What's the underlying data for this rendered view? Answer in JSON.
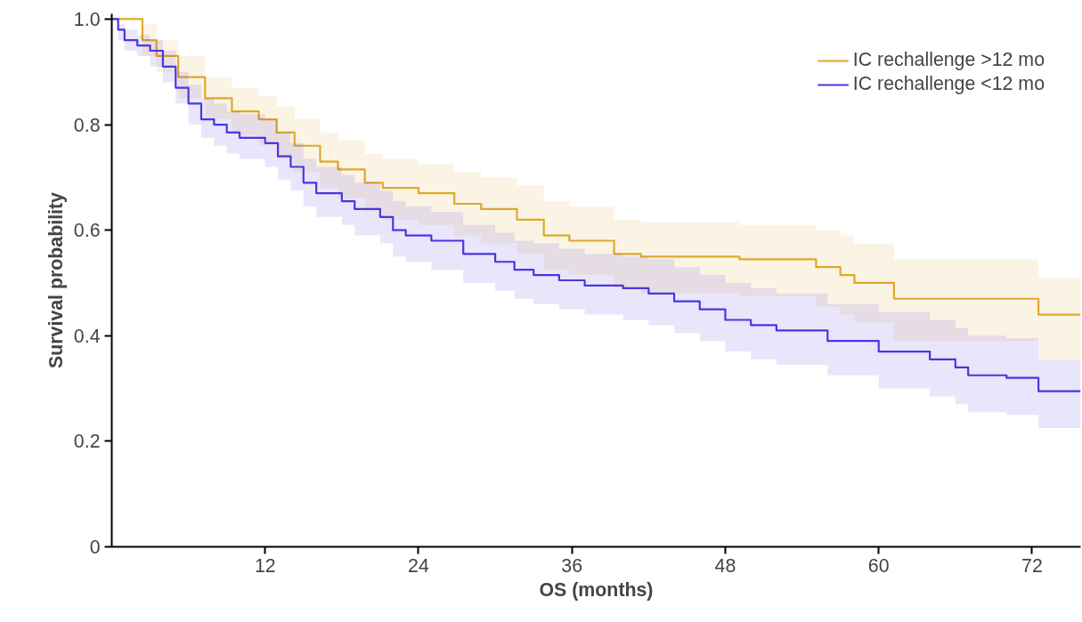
{
  "chart_data": {
    "type": "step",
    "xlabel": "OS (months)",
    "ylabel": "Survival probability",
    "xlim": [
      0,
      75.8
    ],
    "ylim": [
      0,
      1.01
    ],
    "xticks": [
      12,
      24,
      36,
      48,
      60,
      72
    ],
    "yticks": [
      0,
      0.2,
      0.4,
      0.6,
      0.8,
      {
        "value": 1.0,
        "label": "1.0"
      }
    ],
    "grid": false,
    "legend": "top right",
    "series": [
      {
        "name": "IC rechallenge >12 mo",
        "color": "#e0a828",
        "x": [
          0,
          2.4,
          3.5,
          5.2,
          7.3,
          9.4,
          11.5,
          12.9,
          14.3,
          16.3,
          17.7,
          19.8,
          21.2,
          24,
          26.8,
          28.9,
          31.7,
          33.8,
          35.8,
          39.3,
          41.4,
          49.1,
          55.1,
          57,
          58.1,
          61.2,
          72.5,
          75.8
        ],
        "values": [
          1.0,
          0.96,
          0.93,
          0.89,
          0.85,
          0.825,
          0.81,
          0.785,
          0.76,
          0.73,
          0.715,
          0.69,
          0.68,
          0.67,
          0.65,
          0.64,
          0.62,
          0.59,
          0.58,
          0.555,
          0.55,
          0.545,
          0.53,
          0.515,
          0.5,
          0.47,
          0.44,
          0.44
        ],
        "lower": [
          1.0,
          0.93,
          0.9,
          0.85,
          0.81,
          0.78,
          0.76,
          0.735,
          0.71,
          0.68,
          0.66,
          0.635,
          0.62,
          0.61,
          0.59,
          0.575,
          0.555,
          0.525,
          0.515,
          0.49,
          0.48,
          0.475,
          0.455,
          0.44,
          0.425,
          0.39,
          0.355,
          0.355
        ],
        "upper": [
          1.0,
          0.99,
          0.96,
          0.93,
          0.89,
          0.87,
          0.855,
          0.835,
          0.81,
          0.785,
          0.77,
          0.745,
          0.735,
          0.725,
          0.71,
          0.7,
          0.685,
          0.655,
          0.645,
          0.62,
          0.615,
          0.61,
          0.6,
          0.59,
          0.575,
          0.545,
          0.51,
          0.51
        ]
      },
      {
        "name": "IC rechallenge <12 mo",
        "color": "#4b35e0",
        "x": [
          0,
          0.5,
          1,
          2,
          3,
          4,
          5,
          6,
          7,
          8,
          9,
          10,
          12,
          13,
          14,
          15,
          16,
          18,
          19,
          21,
          22,
          23,
          25,
          27.5,
          30,
          31.5,
          33,
          35,
          37,
          40,
          42,
          44,
          46,
          48,
          50,
          52,
          56,
          60,
          64,
          66,
          67,
          70,
          72.5,
          75.8
        ],
        "values": [
          1.0,
          0.98,
          0.96,
          0.95,
          0.94,
          0.91,
          0.87,
          0.84,
          0.81,
          0.8,
          0.785,
          0.775,
          0.765,
          0.74,
          0.72,
          0.69,
          0.67,
          0.655,
          0.64,
          0.625,
          0.6,
          0.59,
          0.58,
          0.555,
          0.54,
          0.525,
          0.515,
          0.505,
          0.495,
          0.49,
          0.48,
          0.465,
          0.45,
          0.43,
          0.42,
          0.41,
          0.39,
          0.37,
          0.355,
          0.34,
          0.325,
          0.32,
          0.295,
          0.295
        ],
        "lower": [
          1.0,
          0.96,
          0.94,
          0.93,
          0.91,
          0.88,
          0.84,
          0.8,
          0.775,
          0.76,
          0.745,
          0.735,
          0.72,
          0.695,
          0.675,
          0.645,
          0.625,
          0.61,
          0.59,
          0.575,
          0.55,
          0.54,
          0.525,
          0.5,
          0.485,
          0.47,
          0.46,
          0.45,
          0.44,
          0.43,
          0.42,
          0.405,
          0.39,
          0.37,
          0.355,
          0.345,
          0.325,
          0.3,
          0.285,
          0.27,
          0.255,
          0.25,
          0.225,
          0.225
        ],
        "upper": [
          1.0,
          0.99,
          0.98,
          0.97,
          0.96,
          0.94,
          0.9,
          0.875,
          0.85,
          0.84,
          0.825,
          0.82,
          0.81,
          0.785,
          0.765,
          0.735,
          0.72,
          0.705,
          0.69,
          0.675,
          0.655,
          0.645,
          0.635,
          0.61,
          0.595,
          0.58,
          0.575,
          0.565,
          0.555,
          0.55,
          0.545,
          0.53,
          0.515,
          0.5,
          0.49,
          0.48,
          0.46,
          0.445,
          0.43,
          0.415,
          0.4,
          0.395,
          0.355,
          0.355
        ]
      }
    ]
  }
}
